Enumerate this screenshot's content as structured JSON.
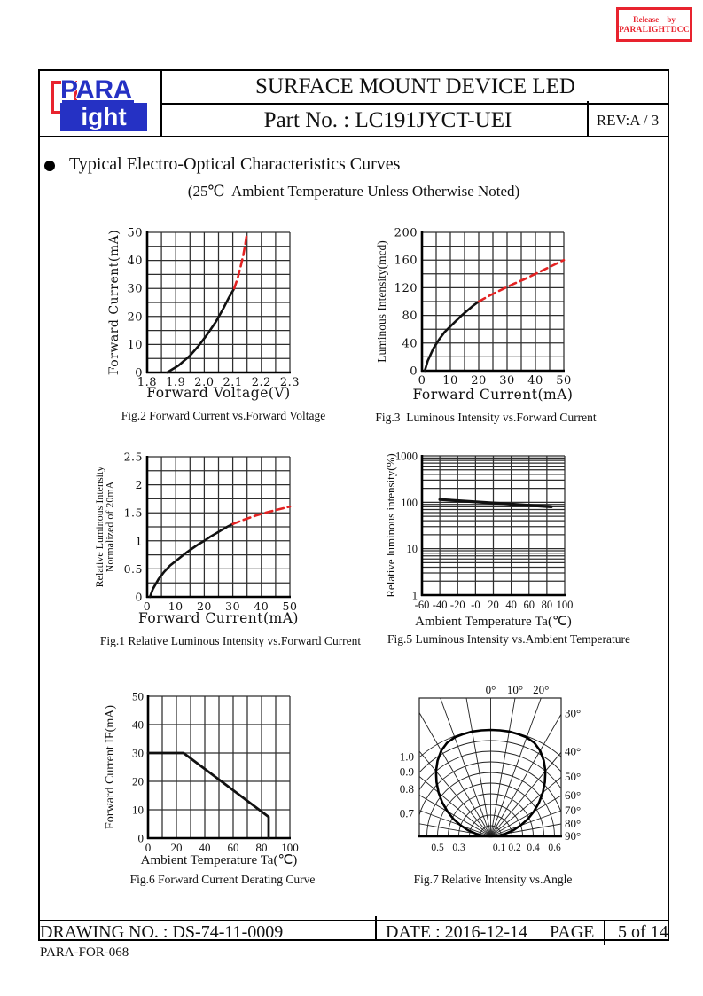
{
  "release_stamp": {
    "line1": "Release by",
    "line2": "PARALIGHTDCC",
    "color": "#e8232e"
  },
  "header": {
    "logo_top": "PARA",
    "logo_bottom": "ight",
    "title": "SURFACE MOUNT DEVICE LED",
    "part_no": "Part No. : LC191JYCT-UEI",
    "rev": "REV:A / 3"
  },
  "section": {
    "bullet_title": "Typical Electro-Optical Characteristics Curves",
    "subtitle": "(25℃  Ambient Temperature Unless Otherwise Noted)"
  },
  "footer": {
    "drawing_no": "DRAWING NO. : DS-74-11-0009",
    "date": "DATE : 2016-12-14",
    "page_label": "PAGE",
    "page_value": "5 of 14",
    "form_no": "PARA-FOR-068"
  },
  "chart_data": [
    {
      "id": "fig2",
      "type": "line",
      "title": "Fig.2 Forward Current vs.Forward Voltage",
      "xlabel": "Forward Voltage(V)",
      "ylabel": [
        "Forward Current(mA)"
      ],
      "xlim": [
        1.8,
        2.3
      ],
      "ylim": [
        0,
        50
      ],
      "xgrid": 0.05,
      "ygrid": 5,
      "xticks": [
        1.8,
        1.9,
        2.0,
        2.1,
        2.2,
        2.3
      ],
      "xtick_labels": [
        "1.8",
        "1.9",
        "2.0",
        "2.1",
        "2.2",
        "2.3"
      ],
      "yticks": [
        0,
        10,
        20,
        30,
        40,
        50
      ],
      "ytick_labels": [
        "0",
        "10",
        "20",
        "30",
        "40",
        "50"
      ],
      "series": [
        {
          "name": "typical",
          "color": "#111111",
          "width": 2.6,
          "dash": null,
          "points": [
            [
              1.87,
              0
            ],
            [
              1.91,
              2.5
            ],
            [
              1.95,
              6
            ],
            [
              1.98,
              9.5
            ],
            [
              2.01,
              13.5
            ],
            [
              2.04,
              18
            ],
            [
              2.065,
              22.5
            ],
            [
              2.085,
              26.5
            ],
            [
              2.105,
              30
            ]
          ]
        },
        {
          "name": "extrapolated",
          "color": "#e32222",
          "width": 2.6,
          "dash": "8,5",
          "points": [
            [
              2.105,
              30
            ],
            [
              2.118,
              34
            ],
            [
              2.128,
              38
            ],
            [
              2.137,
              42
            ],
            [
              2.144,
              46
            ],
            [
              2.15,
              50
            ]
          ]
        }
      ]
    },
    {
      "id": "fig3",
      "type": "line",
      "title": "Fig.3  Luminous Intensity vs.Forward Current",
      "xlabel": "Forward Current(mA)",
      "ylabel": [
        "Luminous Intensity(mcd)"
      ],
      "xlim": [
        0,
        50
      ],
      "ylim": [
        0,
        200
      ],
      "xgrid": 5,
      "ygrid": 20,
      "xticks": [
        0,
        10,
        20,
        30,
        40,
        50
      ],
      "xtick_labels": [
        "0",
        "10",
        "20",
        "30",
        "40",
        "50"
      ],
      "yticks": [
        0,
        40,
        80,
        120,
        160,
        200
      ],
      "ytick_labels": [
        "0",
        "40",
        "80",
        "120",
        "160",
        "200"
      ],
      "series": [
        {
          "name": "typical",
          "color": "#111111",
          "width": 2.6,
          "dash": null,
          "points": [
            [
              1,
              0
            ],
            [
              2,
              14
            ],
            [
              4,
              32
            ],
            [
              6,
              45
            ],
            [
              8,
              56
            ],
            [
              10,
              64
            ],
            [
              12,
              72
            ],
            [
              14,
              80
            ],
            [
              16,
              87
            ],
            [
              18,
              94
            ],
            [
              20,
              100
            ]
          ]
        },
        {
          "name": "extrapolated",
          "color": "#e32222",
          "width": 2.6,
          "dash": "8,5",
          "points": [
            [
              20,
              100
            ],
            [
              24,
              109
            ],
            [
              28,
              117
            ],
            [
              32,
              125
            ],
            [
              36,
              132
            ],
            [
              40,
              140
            ],
            [
              45,
              150
            ],
            [
              50,
              160
            ]
          ]
        }
      ]
    },
    {
      "id": "fig1",
      "type": "line",
      "title": "Fig.1 Relative Luminous Intensity vs.Forward Current",
      "xlabel": "Forward Current(mA)",
      "ylabel": [
        "Relative Luminous Intensity",
        "Normalized of 20mA"
      ],
      "xlim": [
        0,
        50
      ],
      "ylim": [
        0,
        2.5
      ],
      "xgrid": 5,
      "ygrid": 0.25,
      "xticks": [
        0,
        10,
        20,
        30,
        40,
        50
      ],
      "xtick_labels": [
        "0",
        "10",
        "20",
        "30",
        "40",
        "50"
      ],
      "yticks": [
        0,
        0.5,
        1,
        1.5,
        2,
        2.5
      ],
      "ytick_labels": [
        "0",
        "0.5",
        "1",
        "1.5",
        "2",
        "2.5"
      ],
      "series": [
        {
          "name": "typical",
          "color": "#111111",
          "width": 2.6,
          "dash": null,
          "points": [
            [
              1,
              0
            ],
            [
              2,
              0.14
            ],
            [
              4,
              0.32
            ],
            [
              6,
              0.45
            ],
            [
              8,
              0.56
            ],
            [
              10,
              0.64
            ],
            [
              12,
              0.72
            ],
            [
              14,
              0.8
            ],
            [
              16,
              0.87
            ],
            [
              18,
              0.94
            ],
            [
              20,
              1.0
            ],
            [
              22,
              1.07
            ],
            [
              24,
              1.13
            ],
            [
              26,
              1.19
            ],
            [
              28,
              1.25
            ],
            [
              30,
              1.3
            ]
          ]
        },
        {
          "name": "extrapolated",
          "color": "#e32222",
          "width": 2.6,
          "dash": "8,5",
          "points": [
            [
              30,
              1.3
            ],
            [
              34,
              1.38
            ],
            [
              38,
              1.45
            ],
            [
              42,
              1.51
            ],
            [
              46,
              1.56
            ],
            [
              50,
              1.61
            ]
          ]
        }
      ]
    },
    {
      "id": "fig5",
      "type": "line",
      "title": "Fig.5 Luminous Intensity vs.Ambient Temperature",
      "xlabel": "Ambient Temperature Ta(℃)",
      "ylabel": [
        "Relative luminous intensity(%)"
      ],
      "xlim": [
        -60,
        100
      ],
      "ylim": [
        1,
        1000
      ],
      "xgrid": 20,
      "yscale": "log",
      "xticks": [
        -60,
        -40,
        -20,
        0,
        20,
        40,
        60,
        80,
        100
      ],
      "xtick_labels": [
        "-60",
        "-40",
        "-20",
        "-0",
        "20",
        "40",
        "60",
        "80",
        "100"
      ],
      "yticks": [
        1,
        10,
        100,
        1000
      ],
      "ytick_labels": [
        "1",
        "10",
        "100",
        "1000"
      ],
      "series": [
        {
          "name": "typical",
          "color": "#111111",
          "width": 3.2,
          "dash": null,
          "points": [
            [
              -40,
              115
            ],
            [
              85,
              80
            ]
          ]
        }
      ]
    },
    {
      "id": "fig6",
      "type": "line",
      "title": "Fig.6 Forward Current Derating Curve",
      "xlabel": "Ambient Temperature Ta(℃)",
      "ylabel": [
        "Forward Current IF(mA)"
      ],
      "xlim": [
        0,
        100
      ],
      "ylim": [
        0,
        50
      ],
      "xgrid": 10,
      "ygrid": 10,
      "xticks": [
        0,
        20,
        40,
        60,
        80,
        100
      ],
      "xtick_labels": [
        "0",
        "20",
        "40",
        "60",
        "80",
        "100"
      ],
      "yticks": [
        0,
        10,
        20,
        30,
        40,
        50
      ],
      "ytick_labels": [
        "0",
        "10",
        "20",
        "30",
        "40",
        "50"
      ],
      "series": [
        {
          "name": "derating",
          "color": "#111111",
          "width": 2.8,
          "dash": null,
          "points": [
            [
              0,
              30
            ],
            [
              25,
              30
            ],
            [
              85,
              7.5
            ],
            [
              85,
              0
            ]
          ]
        }
      ]
    },
    {
      "id": "fig7",
      "type": "polar",
      "title": "Fig.7 Relative Intensity vs.Angle",
      "angle_labels_top": [
        "0°",
        "10°",
        "20°"
      ],
      "angle_labels_right": [
        "30°",
        "40°",
        "50°",
        "60°",
        "70°",
        "80°",
        "90°"
      ],
      "radius_labels_left": [
        "1.0",
        "0.9",
        "0.8",
        "0.7"
      ],
      "radius_values_left": [
        1.0,
        0.9,
        0.8,
        0.7
      ],
      "bottom_labels": [
        [
          "0.5",
          -0.5
        ],
        [
          "0.3",
          -0.3
        ],
        [
          "0.1",
          0.08
        ],
        [
          "0.2",
          0.225
        ],
        [
          "0.4",
          0.4
        ],
        [
          "0.6",
          0.6
        ]
      ],
      "rings": [
        0.1,
        0.2,
        0.3,
        0.4,
        0.5,
        0.6,
        0.7,
        0.8,
        0.9,
        1.0
      ],
      "pattern": [
        [
          0,
          1.0
        ],
        [
          5,
          1.0
        ],
        [
          10,
          1.0
        ],
        [
          15,
          0.995
        ],
        [
          20,
          0.99
        ],
        [
          25,
          0.97
        ],
        [
          30,
          0.93
        ],
        [
          35,
          0.87
        ],
        [
          40,
          0.8
        ],
        [
          45,
          0.72
        ],
        [
          50,
          0.64
        ],
        [
          55,
          0.555
        ],
        [
          60,
          0.47
        ],
        [
          65,
          0.385
        ],
        [
          70,
          0.3
        ],
        [
          75,
          0.22
        ],
        [
          80,
          0.14
        ],
        [
          85,
          0.07
        ],
        [
          90,
          0.0
        ]
      ]
    }
  ]
}
